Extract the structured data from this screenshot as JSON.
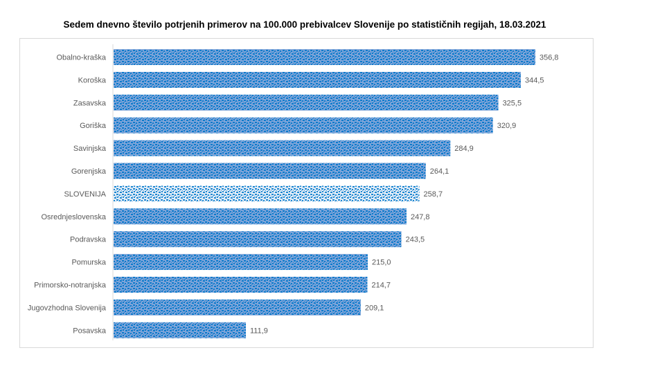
{
  "chart_data": {
    "type": "bar",
    "orientation": "horizontal",
    "title": "Sedem dnevno število potrjenih primerov na 100.000  prebivalcev Slovenije po statističnih regijah, 18.03.2021",
    "categories": [
      "Obalno-kraška",
      "Koroška",
      "Zasavska",
      "Goriška",
      "Savinjska",
      "Gorenjska",
      "SLOVENIJA",
      "Osrednjeslovenska",
      "Podravska",
      "Pomurska",
      "Primorsko-notranjska",
      "Jugovzhodna Slovenija",
      "Posavska"
    ],
    "values": [
      356.8,
      344.5,
      325.5,
      320.9,
      284.9,
      264.1,
      258.7,
      247.8,
      243.5,
      215.0,
      214.7,
      209.1,
      111.9
    ],
    "labels": [
      "356,8",
      "344,5",
      "325,5",
      "320,9",
      "284,9",
      "264,1",
      "258,7",
      "247,8",
      "243,5",
      "215,0",
      "214,7",
      "209,1",
      "111,9"
    ],
    "highlight": "SLOVENIJA",
    "xlabel": "",
    "ylabel": "",
    "xlim": [
      0,
      370
    ],
    "grid": false,
    "colors": {
      "bar_bg": "#7da4d9",
      "bar_dot": "#0a7acb",
      "highlight_bg": "#e2ecf7",
      "highlight_dot": "#1a86d0"
    }
  }
}
